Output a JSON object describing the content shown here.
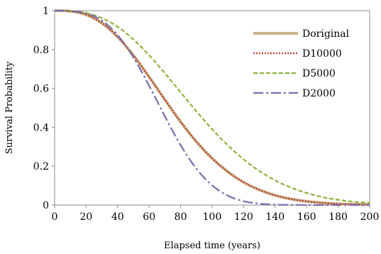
{
  "chart_data": {
    "type": "line",
    "xlabel": "Elapsed  time  (years)",
    "ylabel": "Survival  Probability",
    "xlim": [
      0,
      200
    ],
    "ylim": [
      0,
      1
    ],
    "xticks": [
      "0",
      "20",
      "40",
      "60",
      "80",
      "100",
      "120",
      "140",
      "160",
      "180",
      "200"
    ],
    "yticks": [
      "0",
      "0.2",
      "0.4",
      "0.6",
      "0.8",
      "1"
    ],
    "grid": false,
    "legend_position": "top-right",
    "series": [
      {
        "name": "Doriginal",
        "color": "#c8b48a",
        "style": "solid",
        "x": [
          0,
          10,
          20,
          30,
          40,
          50,
          60,
          70,
          80,
          90,
          100,
          110,
          120,
          130,
          140,
          150,
          160,
          170,
          180,
          190,
          200
        ],
        "y": [
          1.0,
          0.997,
          0.979,
          0.936,
          0.865,
          0.77,
          0.659,
          0.542,
          0.428,
          0.326,
          0.24,
          0.171,
          0.117,
          0.078,
          0.05,
          0.031,
          0.019,
          0.011,
          0.006,
          0.004,
          0.002
        ]
      },
      {
        "name": "D10000",
        "color": "#c0392b",
        "style": "dotted",
        "x": [
          0,
          10,
          20,
          30,
          40,
          50,
          60,
          70,
          80,
          90,
          100,
          110,
          120,
          130,
          140,
          150,
          160,
          170,
          180,
          190,
          200
        ],
        "y": [
          1.0,
          0.997,
          0.979,
          0.936,
          0.865,
          0.77,
          0.659,
          0.542,
          0.428,
          0.326,
          0.24,
          0.171,
          0.117,
          0.078,
          0.05,
          0.031,
          0.019,
          0.011,
          0.006,
          0.004,
          0.002
        ]
      },
      {
        "name": "D5000",
        "color": "#8db33a",
        "style": "dashed",
        "x": [
          0,
          10,
          20,
          30,
          40,
          50,
          60,
          70,
          80,
          90,
          100,
          110,
          120,
          130,
          140,
          150,
          160,
          170,
          180,
          190,
          200
        ],
        "y": [
          1.0,
          0.999,
          0.988,
          0.962,
          0.917,
          0.852,
          0.771,
          0.678,
          0.58,
          0.482,
          0.39,
          0.307,
          0.235,
          0.175,
          0.127,
          0.09,
          0.062,
          0.041,
          0.027,
          0.017,
          0.011
        ]
      },
      {
        "name": "D2000",
        "color": "#7b6bb0",
        "style": "dashdot",
        "x": [
          0,
          10,
          20,
          30,
          40,
          50,
          60,
          70,
          80,
          90,
          100,
          110,
          120,
          130,
          140,
          150,
          160,
          170,
          180,
          190,
          200
        ],
        "y": [
          1.0,
          0.998,
          0.986,
          0.949,
          0.874,
          0.76,
          0.614,
          0.456,
          0.308,
          0.187,
          0.101,
          0.048,
          0.02,
          0.007,
          0.002,
          0.001,
          0.0,
          0.0,
          0.0,
          0.0,
          0.0
        ]
      }
    ]
  }
}
